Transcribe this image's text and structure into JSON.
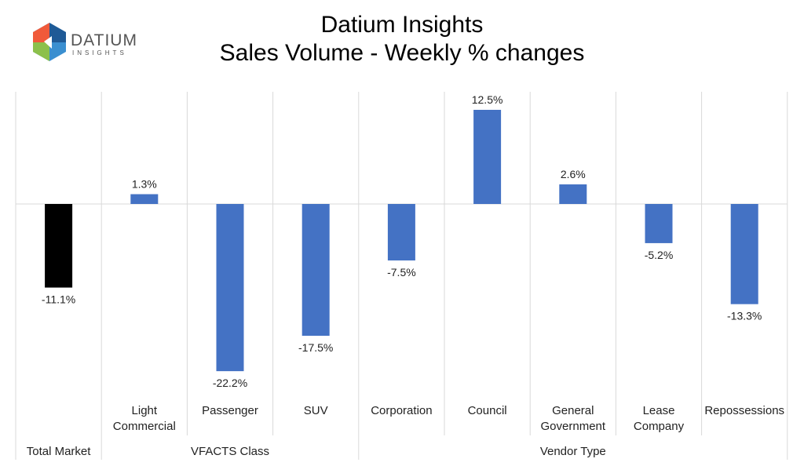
{
  "logo": {
    "text": "DATIUM",
    "subtext": "INSIGHTS"
  },
  "chart_data": {
    "type": "bar",
    "title": [
      "Datium Insights",
      "Sales Volume - Weekly % changes"
    ],
    "categories": [
      "Total Market",
      "Light Commercial",
      "Passenger",
      "SUV",
      "Corporation",
      "Council",
      "General Government",
      "Lease Company",
      "Repossessions"
    ],
    "groups": [
      {
        "label": "",
        "members": [
          "Total Market"
        ]
      },
      {
        "label": "VFACTS Class",
        "members": [
          "Light Commercial",
          "Passenger",
          "SUV"
        ]
      },
      {
        "label": "Vendor Type",
        "members": [
          "Corporation",
          "Council",
          "General Government",
          "Lease Company",
          "Repossessions"
        ]
      }
    ],
    "values": [
      -11.1,
      1.3,
      -22.2,
      -17.5,
      -7.5,
      12.5,
      2.6,
      -5.2,
      -13.3
    ],
    "data_labels": [
      "-11.1%",
      "1.3%",
      "-22.2%",
      "-17.5%",
      "-7.5%",
      "12.5%",
      "2.6%",
      "-5.2%",
      "-13.3%"
    ],
    "colors": {
      "Total Market": "#000000",
      "default": "#4472C4"
    },
    "unit": "%"
  }
}
